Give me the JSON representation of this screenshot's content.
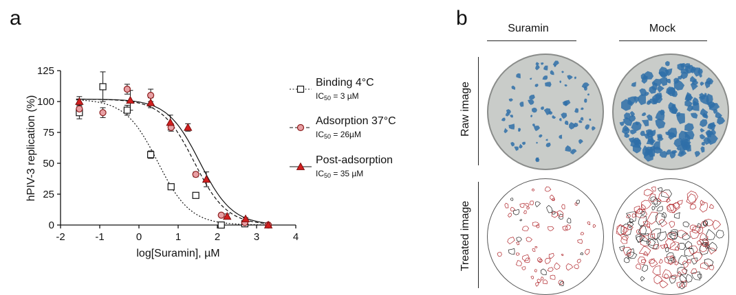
{
  "panel_a": {
    "letter": "a",
    "chart_data": {
      "type": "scatter",
      "xlabel": "log[Suramin], µM",
      "ylabel": "hPIV-3 replication (%)",
      "xlim": [
        -2,
        4
      ],
      "ylim": [
        0,
        125
      ],
      "xticks": [
        "-2",
        "-1",
        "0",
        "1",
        "2",
        "3",
        "4"
      ],
      "yticks": [
        "0",
        "25",
        "50",
        "75",
        "100",
        "125"
      ],
      "series": [
        {
          "name": "Binding 4°C",
          "ic50_prefix": "IC",
          "ic50_sub": "50",
          "ic50_suffix": " = 3 µM",
          "marker": "open-square",
          "line": "dotted",
          "color": "#111111",
          "fill": "#ffffff",
          "ic50_log": 0.48,
          "hill": 1.05,
          "top": 102,
          "x": [
            -1.52,
            -0.92,
            -0.3,
            0.3,
            0.82,
            1.45,
            2.1,
            2.7
          ],
          "y": [
            91,
            112,
            93,
            57,
            31,
            24,
            0,
            1
          ],
          "err": [
            5,
            12,
            4,
            3,
            2,
            2,
            1,
            1
          ]
        },
        {
          "name": "Adsorption 37°C",
          "ic50_prefix": "IC",
          "ic50_sub": "50",
          "ic50_suffix": " = 26µM",
          "marker": "circle",
          "line": "dashed",
          "color": "#8b1a1a",
          "fill": "#e8a0a4",
          "ic50_log": 1.41,
          "hill": 1.05,
          "top": 102,
          "x": [
            -1.52,
            -0.92,
            -0.3,
            0.3,
            0.82,
            1.45,
            2.1,
            2.7,
            3.3
          ],
          "y": [
            94,
            91,
            110,
            105,
            79,
            41,
            8,
            2,
            0
          ],
          "err": [
            3,
            4,
            4,
            5,
            3,
            2,
            1,
            1,
            1
          ]
        },
        {
          "name": "Post-adsorption",
          "ic50_prefix": "IC",
          "ic50_sub": "50",
          "ic50_suffix": " = 35 µM",
          "marker": "filled-triangle",
          "line": "solid",
          "color": "#111111",
          "fill": "#d21f1f",
          "ic50_log": 1.55,
          "hill": 1.05,
          "top": 102,
          "x": [
            -1.52,
            -0.22,
            0.3,
            0.8,
            1.25,
            1.72,
            2.25,
            2.72,
            3.3
          ],
          "y": [
            100,
            101,
            99,
            83,
            79,
            37,
            7,
            5,
            0
          ],
          "err": [
            4,
            8,
            4,
            6,
            3,
            6,
            2,
            1,
            1
          ]
        }
      ]
    }
  },
  "panel_b": {
    "letter": "b",
    "columns": [
      "Suramin",
      "Mock"
    ],
    "rows": [
      "Raw image",
      "Treated image"
    ],
    "plate_color": "#c9ccc9",
    "plaque_color": "#2f6fa8",
    "outline_color": "#b0262b",
    "plaque_counts": {
      "suramin": 70,
      "mock": 150
    }
  }
}
